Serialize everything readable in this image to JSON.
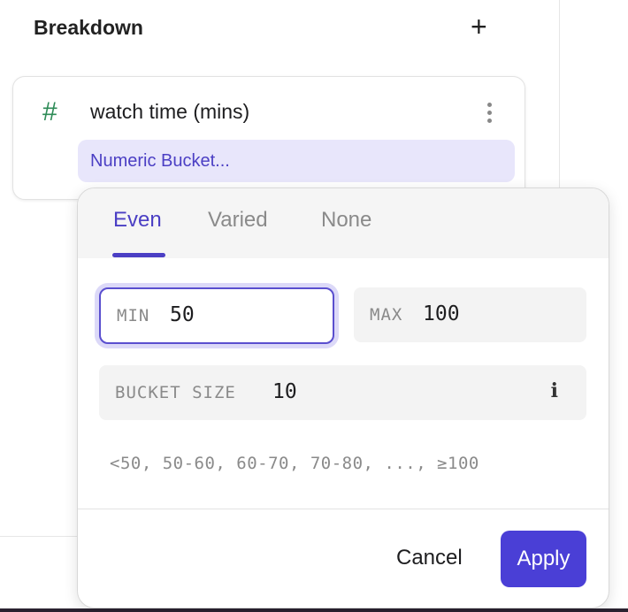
{
  "breakdown": {
    "title": "Breakdown",
    "add_icon": "plus-icon",
    "property": {
      "type_icon": "hash-icon",
      "name": "watch time (mins)",
      "menu_icon": "kebab-icon",
      "bucket_chip": "Numeric Bucket..."
    }
  },
  "popover": {
    "tabs": [
      {
        "label": "Even",
        "active": true
      },
      {
        "label": "Varied",
        "active": false
      },
      {
        "label": "None",
        "active": false
      }
    ],
    "min": {
      "label": "MIN",
      "value": "50"
    },
    "max": {
      "label": "MAX",
      "value": "100"
    },
    "bucket_size": {
      "label": "BUCKET SIZE",
      "value": "10",
      "info_icon": "info-icon"
    },
    "preview": "<50, 50-60, 60-70, 70-80, ..., ≥100",
    "cancel_label": "Cancel",
    "apply_label": "Apply"
  },
  "colors": {
    "accent": "#4a3fd6",
    "chip_bg": "#e8e6fb",
    "hash": "#2e8b57"
  }
}
